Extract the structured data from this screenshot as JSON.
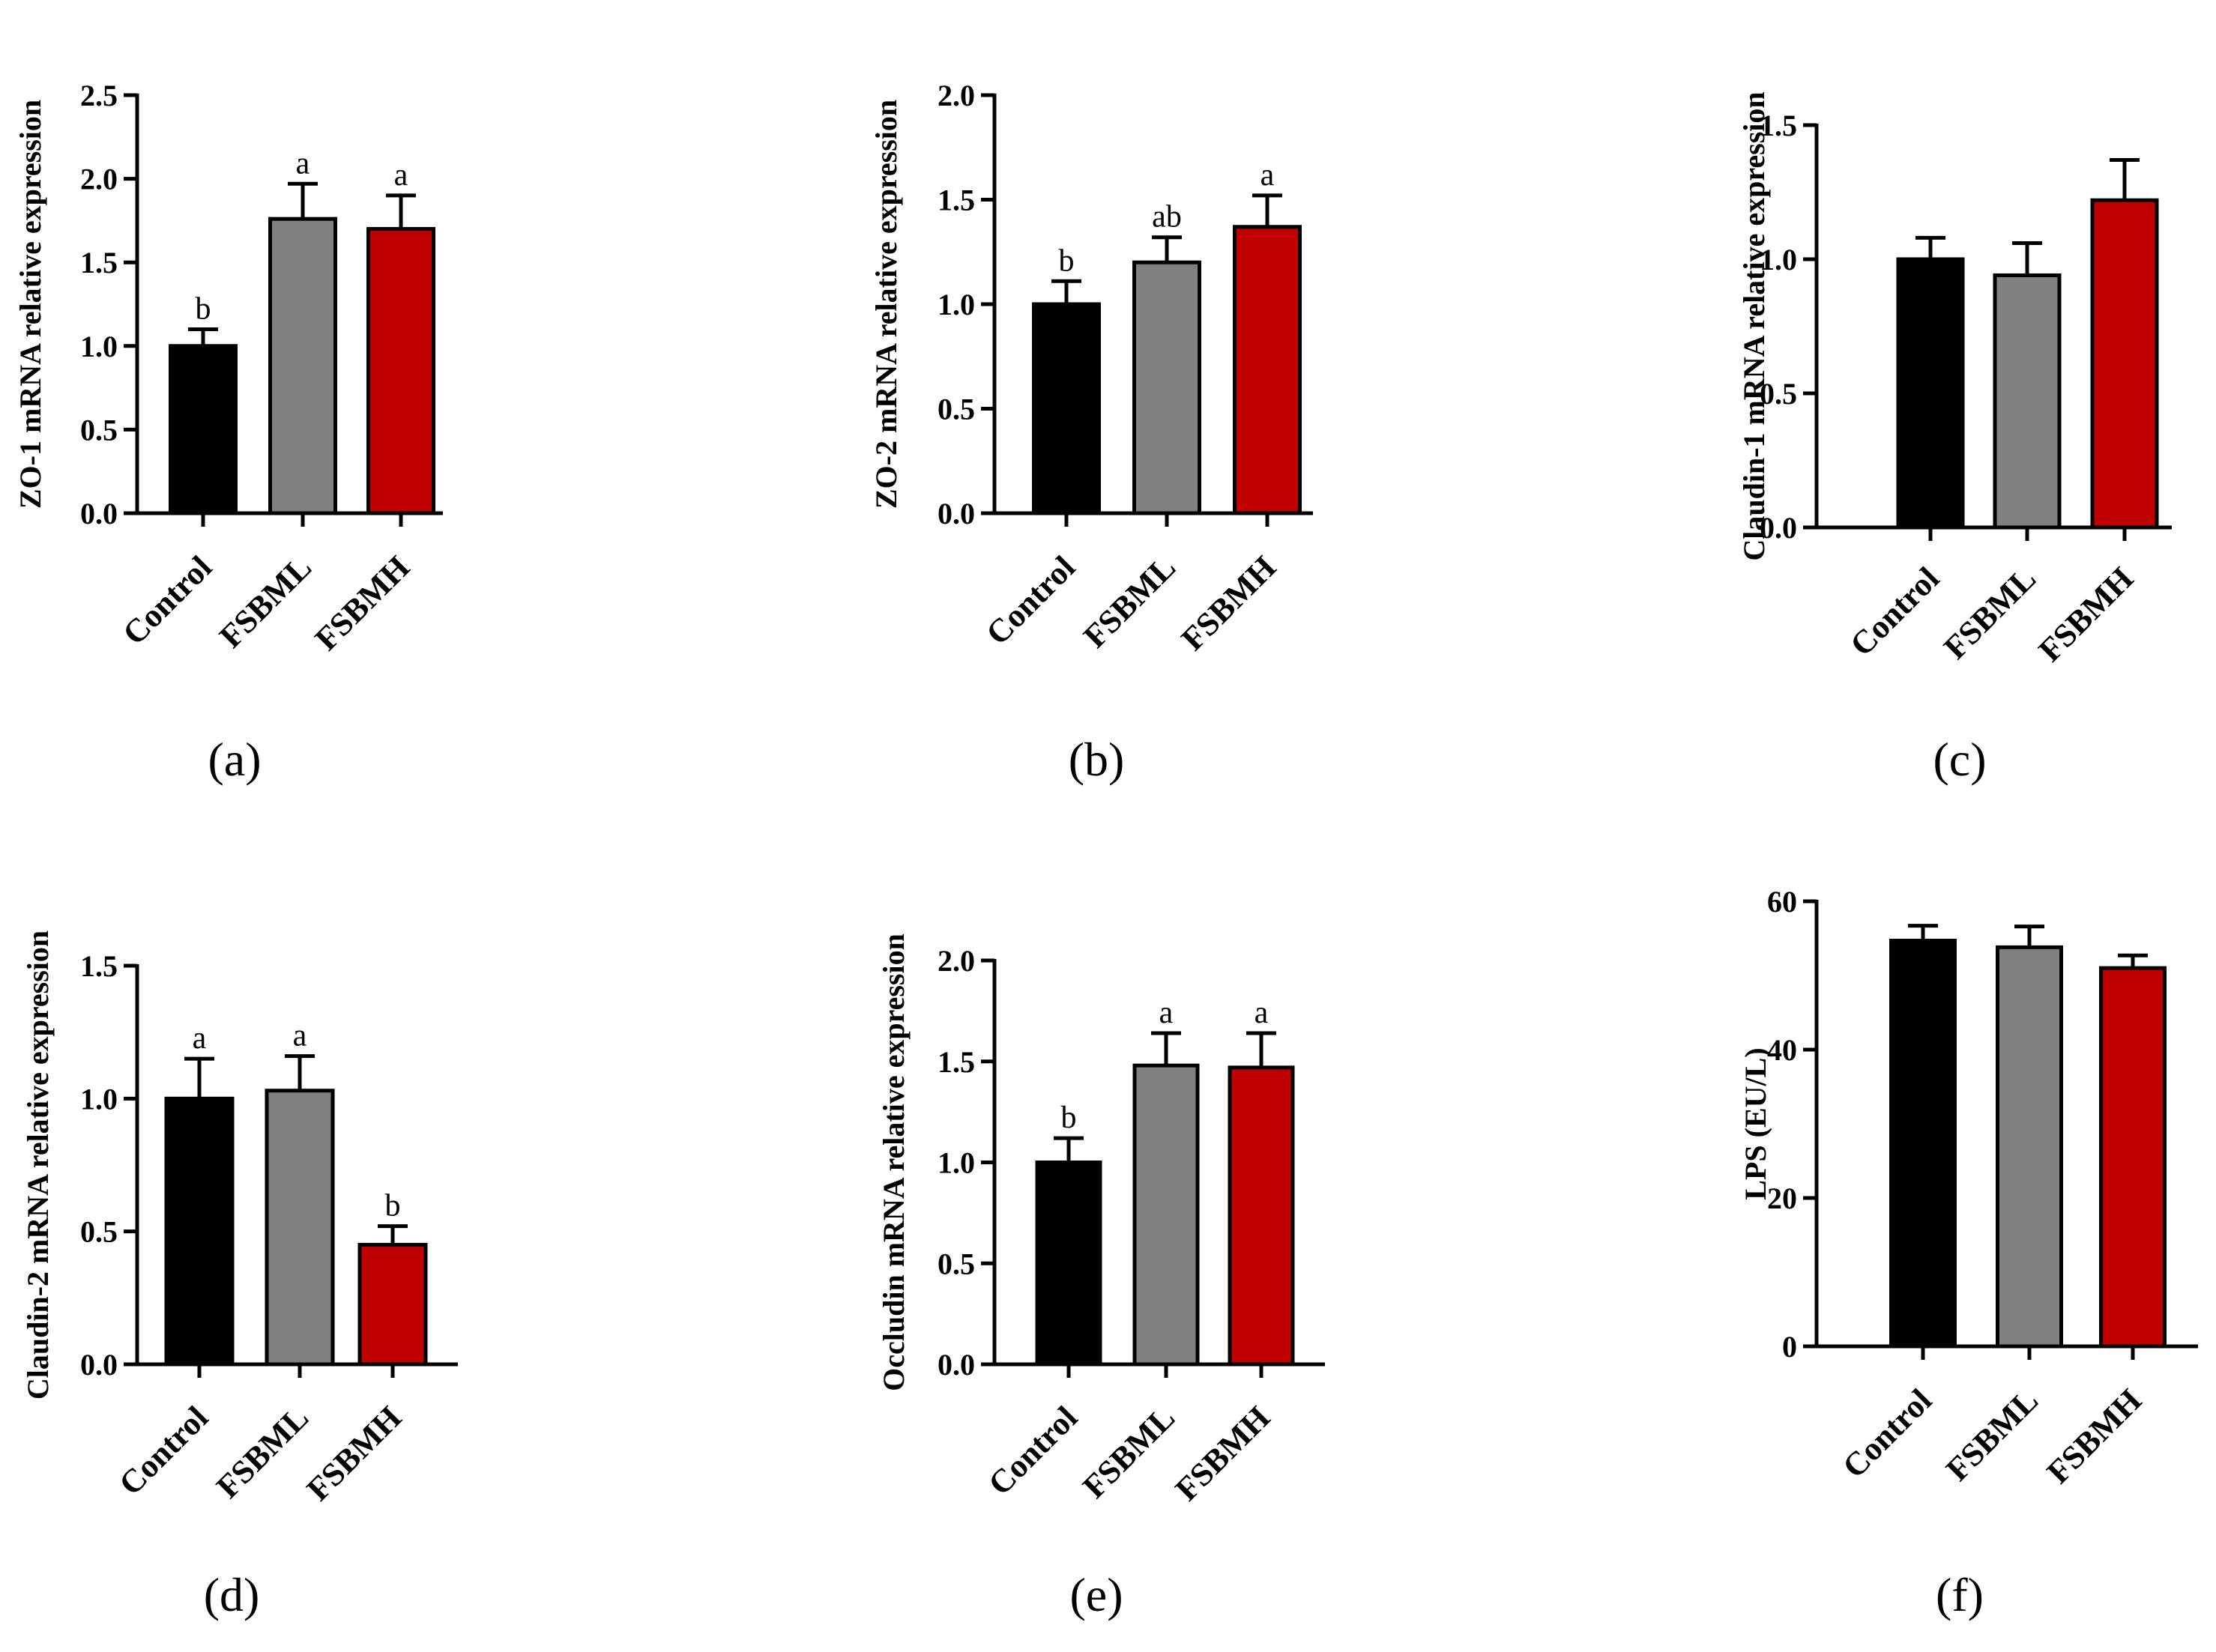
{
  "figure": {
    "colors": {
      "Control": "#000000",
      "FSBML": "#808080",
      "FSBMH": "#c00000"
    }
  },
  "chart_data": [
    {
      "type": "bar",
      "panel": "(a)",
      "ylabel": "ZO-1 mRNA relative expression",
      "categories": [
        "Control",
        "FSBML",
        "FSBMH"
      ],
      "values": [
        1.0,
        1.76,
        1.7
      ],
      "errors": [
        0.1,
        0.21,
        0.2
      ],
      "significance": [
        "b",
        "a",
        "a"
      ],
      "ylim": [
        0,
        2.5
      ],
      "yticks": [
        "0.0",
        "0.5",
        "1.0",
        "1.5",
        "2.0",
        "2.5"
      ]
    },
    {
      "type": "bar",
      "panel": "(b)",
      "ylabel": "ZO-2 mRNA relative expression",
      "categories": [
        "Control",
        "FSBML",
        "FSBMH"
      ],
      "values": [
        1.0,
        1.2,
        1.37
      ],
      "errors": [
        0.11,
        0.12,
        0.15
      ],
      "significance": [
        "b",
        "ab",
        "a"
      ],
      "ylim": [
        0,
        2.0
      ],
      "yticks": [
        "0.0",
        "0.5",
        "1.0",
        "1.5",
        "2.0"
      ]
    },
    {
      "type": "bar",
      "panel": "(c)",
      "ylabel": "Claudin-1 mRNA relative expression",
      "categories": [
        "Control",
        "FSBML",
        "FSBMH"
      ],
      "values": [
        1.0,
        0.94,
        1.22
      ],
      "errors": [
        0.08,
        0.12,
        0.15
      ],
      "significance": [
        "",
        "",
        ""
      ],
      "ylim": [
        0,
        1.5
      ],
      "yticks": [
        "0.0",
        "0.5",
        "1.0",
        "1.5"
      ]
    },
    {
      "type": "bar",
      "panel": "(d)",
      "ylabel": "Claudin-2 mRNA relative expression",
      "categories": [
        "Control",
        "FSBML",
        "FSBMH"
      ],
      "values": [
        1.0,
        1.03,
        0.45
      ],
      "errors": [
        0.15,
        0.13,
        0.07
      ],
      "significance": [
        "a",
        "a",
        "b"
      ],
      "ylim": [
        0,
        1.5
      ],
      "yticks": [
        "0.0",
        "0.5",
        "1.0",
        "1.5"
      ]
    },
    {
      "type": "bar",
      "panel": "(e)",
      "ylabel": "Occludin mRNA relative expression",
      "categories": [
        "Control",
        "FSBML",
        "FSBMH"
      ],
      "values": [
        1.0,
        1.48,
        1.47
      ],
      "errors": [
        0.12,
        0.16,
        0.17
      ],
      "significance": [
        "b",
        "a",
        "a"
      ],
      "ylim": [
        0,
        2.0
      ],
      "yticks": [
        "0.0",
        "0.5",
        "1.0",
        "1.5",
        "2.0"
      ]
    },
    {
      "type": "bar",
      "panel": "(f)",
      "ylabel": "LPS (EU/L)",
      "categories": [
        "Control",
        "FSBML",
        "FSBMH"
      ],
      "values": [
        54.7,
        53.8,
        51.0
      ],
      "errors": [
        2.0,
        2.8,
        1.7
      ],
      "significance": [
        "",
        "",
        ""
      ],
      "ylim": [
        0,
        60
      ],
      "yticks": [
        "0",
        "20",
        "40",
        "60"
      ]
    }
  ]
}
